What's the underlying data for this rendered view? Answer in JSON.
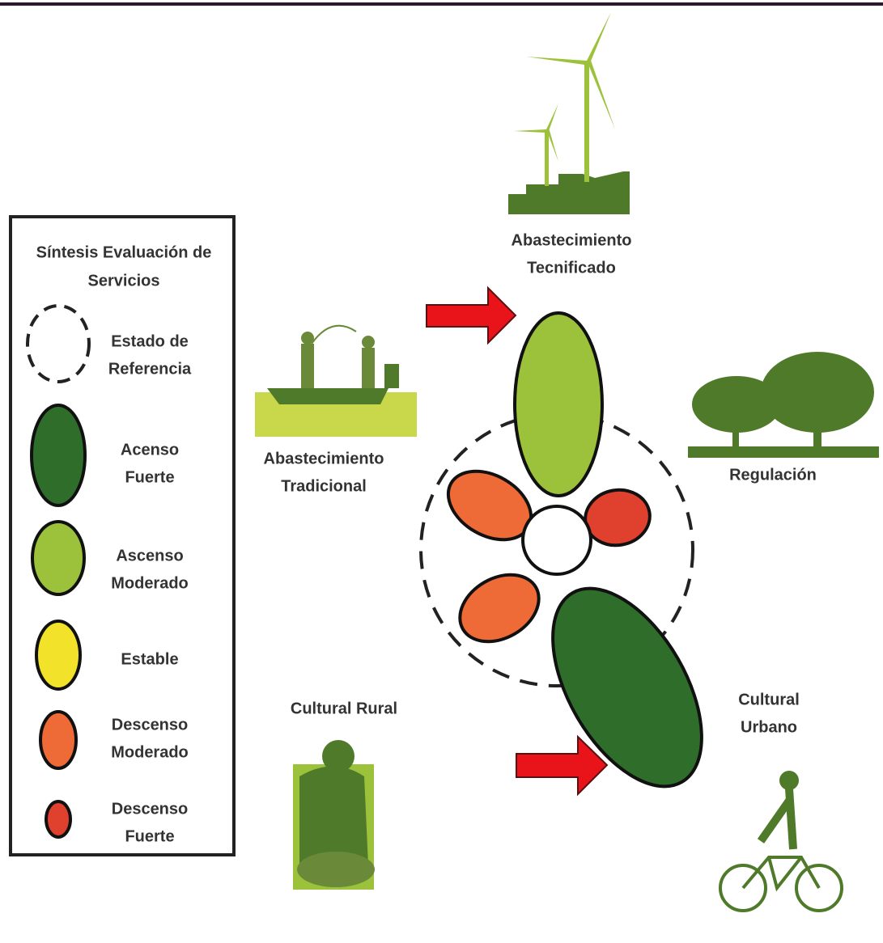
{
  "legend": {
    "title": [
      "Síntesis Evaluación de",
      "Servicios"
    ],
    "items": [
      {
        "label": [
          "Estado de",
          "Referencia"
        ]
      },
      {
        "label": [
          "Acenso",
          "Fuerte"
        ]
      },
      {
        "label": [
          "Ascenso",
          "Moderado"
        ]
      },
      {
        "label": [
          "Estable"
        ]
      },
      {
        "label": [
          "Descenso",
          "Moderado"
        ]
      },
      {
        "label": [
          "Descenso",
          "Fuerte"
        ]
      }
    ]
  },
  "services": [
    {
      "label": [
        "Abastecimiento",
        "Tecnificado"
      ]
    },
    {
      "label": [
        "Abastecimiento",
        "Tradicional"
      ]
    },
    {
      "label": [
        "Regulación"
      ]
    },
    {
      "label": [
        "Cultural Rural"
      ]
    },
    {
      "label": [
        "Cultural",
        "Urbano"
      ]
    }
  ]
}
